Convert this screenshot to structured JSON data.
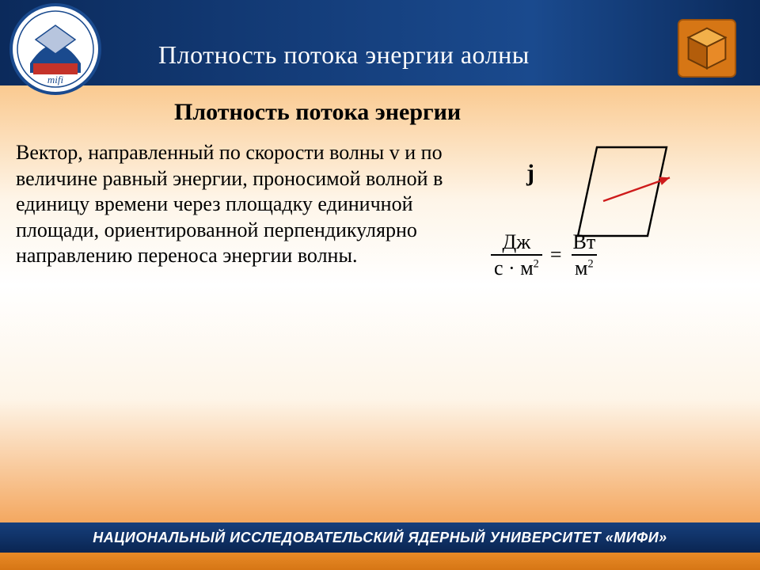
{
  "header": {
    "title": "Плотность потока энергии  аолны",
    "top_edge_color": "#e98e2e",
    "band_gradient": [
      "#0b2a5b",
      "#1a4a8e"
    ]
  },
  "subtitle": "Плотность потока энергии",
  "definition": "Вектор, направленный по скорости волны v и по величине равный энергии, проносимой волной в единицу времени через площадку единичной площади, ориентированной перпендикулярно направлению переноса энергии волны.",
  "vector_label": "j",
  "formula": {
    "left_numerator": "Дж",
    "left_denominator_base": "с · м",
    "left_denominator_exp": "2",
    "equals": "=",
    "right_numerator": "Вт",
    "right_denominator_base": "м",
    "right_denominator_exp": "2"
  },
  "diagram": {
    "parallelogram_stroke": "#000000",
    "arrow_color": "#ce1b1b",
    "arrow_start": [
      65,
      95
    ],
    "arrow_end": [
      170,
      58
    ]
  },
  "footer": "НАЦИОНАЛЬНЫЙ ИССЛЕДОВАТЕЛЬСКИЙ ЯДЕРНЫЙ УНИВЕРСИТЕТ «МИФИ»",
  "colors": {
    "body_bg_top": "#f7a94e",
    "body_bg_mid": "#ffffff",
    "body_bg_bottom": "#f08a2c",
    "footer_band": "#0a2552",
    "footer_bottom": "#d67615"
  },
  "logo_label": "mephi-logo",
  "cube_label": "3d-cube-icon"
}
